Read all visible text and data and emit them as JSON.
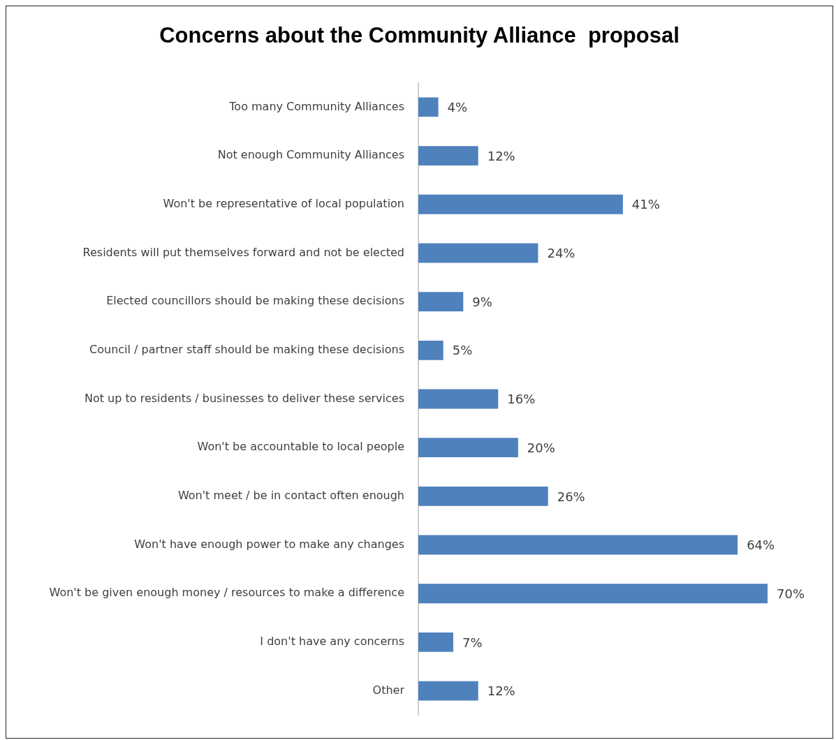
{
  "chart_data": {
    "type": "bar",
    "orientation": "horizontal",
    "title": "Concerns about the Community Alliance  proposal",
    "categories": [
      "Too many Community Alliances",
      "Not enough Community Alliances",
      "Won't be representative of local population",
      "Residents will put themselves forward and not be elected",
      "Elected councillors should be making these decisions",
      "Council / partner staff should be making these decisions",
      "Not up to residents / businesses to deliver these services",
      "Won't be accountable to local people",
      "Won't meet / be in contact often enough",
      "Won't have enough power to make any changes",
      "Won't be given enough money / resources to make a difference",
      "I don't have any concerns",
      "Other"
    ],
    "values": [
      4,
      12,
      41,
      24,
      9,
      5,
      16,
      20,
      26,
      64,
      70,
      7,
      12
    ],
    "value_labels": [
      "4%",
      "12%",
      "41%",
      "24%",
      "9%",
      "5%",
      "16%",
      "20%",
      "26%",
      "64%",
      "70%",
      "7%",
      "12%"
    ],
    "color": "#4f81bd",
    "tick_labels": "y",
    "grid": false,
    "legend": false
  }
}
